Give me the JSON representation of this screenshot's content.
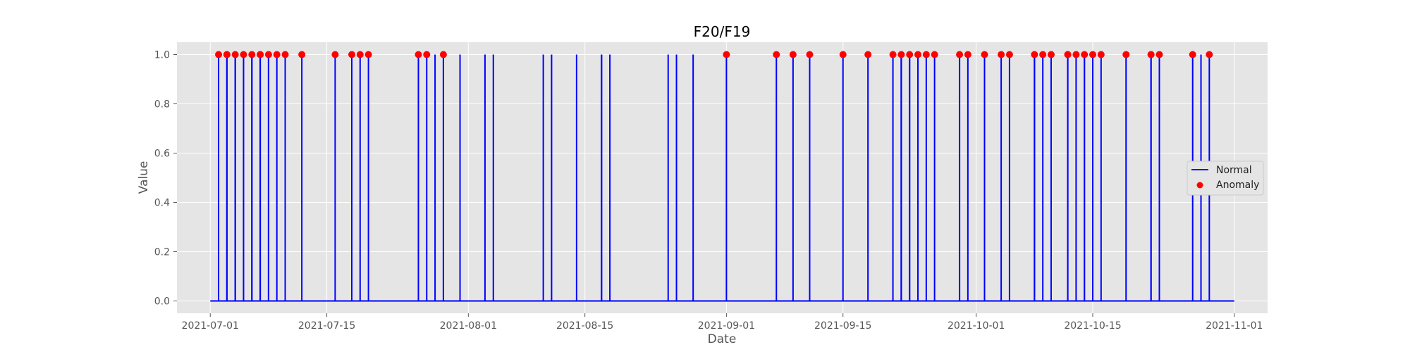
{
  "chart_data": {
    "type": "line",
    "title": "F20/F19",
    "xlabel": "Date",
    "ylabel": "Value",
    "x_range": [
      "2021-06-27",
      "2021-11-05"
    ],
    "ylim": [
      -0.05,
      1.05
    ],
    "x_ticks": [
      "2021-07-01",
      "2021-07-15",
      "2021-08-01",
      "2021-08-15",
      "2021-09-01",
      "2021-09-15",
      "2021-10-01",
      "2021-10-15",
      "2021-11-01"
    ],
    "y_ticks": [
      "0.0",
      "0.2",
      "0.4",
      "0.6",
      "0.8",
      "1.0"
    ],
    "grid": true,
    "legend_position": "center-right",
    "series": [
      {
        "name": "Normal",
        "kind": "line",
        "color": "#0000ff",
        "x_start": "2021-07-01",
        "x_end": "2021-11-01",
        "baseline": 0,
        "spikes_at_1": [
          "2021-07-02",
          "2021-07-03",
          "2021-07-03",
          "2021-07-04",
          "2021-07-04",
          "2021-07-05",
          "2021-07-06",
          "2021-07-06",
          "2021-07-07",
          "2021-07-07",
          "2021-07-08",
          "2021-07-08",
          "2021-07-09",
          "2021-07-10",
          "2021-07-12",
          "2021-07-16",
          "2021-07-18",
          "2021-07-19",
          "2021-07-20",
          "2021-07-26",
          "2021-07-27",
          "2021-07-28",
          "2021-07-29",
          "2021-07-31",
          "2021-08-03",
          "2021-08-04",
          "2021-08-10",
          "2021-08-11",
          "2021-08-14",
          "2021-08-17",
          "2021-08-17",
          "2021-08-18",
          "2021-08-25",
          "2021-08-26",
          "2021-08-28",
          "2021-09-01",
          "2021-09-07",
          "2021-09-09",
          "2021-09-11",
          "2021-09-15",
          "2021-09-18",
          "2021-09-21",
          "2021-09-22",
          "2021-09-22",
          "2021-09-22",
          "2021-09-23",
          "2021-09-23",
          "2021-09-24",
          "2021-09-25",
          "2021-09-26",
          "2021-09-29",
          "2021-09-29",
          "2021-09-30",
          "2021-10-02",
          "2021-10-04",
          "2021-10-05",
          "2021-10-08",
          "2021-10-08",
          "2021-10-09",
          "2021-10-10",
          "2021-10-12",
          "2021-10-12",
          "2021-10-13",
          "2021-10-14",
          "2021-10-14",
          "2021-10-15",
          "2021-10-16",
          "2021-10-19",
          "2021-10-22",
          "2021-10-22",
          "2021-10-23",
          "2021-10-27",
          "2021-10-28",
          "2021-10-29"
        ]
      },
      {
        "name": "Anomaly",
        "kind": "scatter",
        "color": "#ff0000",
        "x": [
          "2021-07-02",
          "2021-07-03",
          "2021-07-03",
          "2021-07-04",
          "2021-07-05",
          "2021-07-06",
          "2021-07-07",
          "2021-07-07",
          "2021-07-08",
          "2021-07-09",
          "2021-07-10",
          "2021-07-12",
          "2021-07-16",
          "2021-07-18",
          "2021-07-19",
          "2021-07-20",
          "2021-07-26",
          "2021-07-27",
          "2021-07-29",
          "2021-09-01",
          "2021-09-07",
          "2021-09-09",
          "2021-09-11",
          "2021-09-15",
          "2021-09-18",
          "2021-09-21",
          "2021-09-22",
          "2021-09-23",
          "2021-09-24",
          "2021-09-25",
          "2021-09-26",
          "2021-09-29",
          "2021-09-30",
          "2021-10-02",
          "2021-10-04",
          "2021-10-05",
          "2021-10-08",
          "2021-10-09",
          "2021-10-10",
          "2021-10-12",
          "2021-10-12",
          "2021-10-13",
          "2021-10-14",
          "2021-10-15",
          "2021-10-16",
          "2021-10-19",
          "2021-10-22",
          "2021-10-22",
          "2021-10-23",
          "2021-10-27",
          "2021-10-29"
        ],
        "y": 1.0
      }
    ]
  }
}
